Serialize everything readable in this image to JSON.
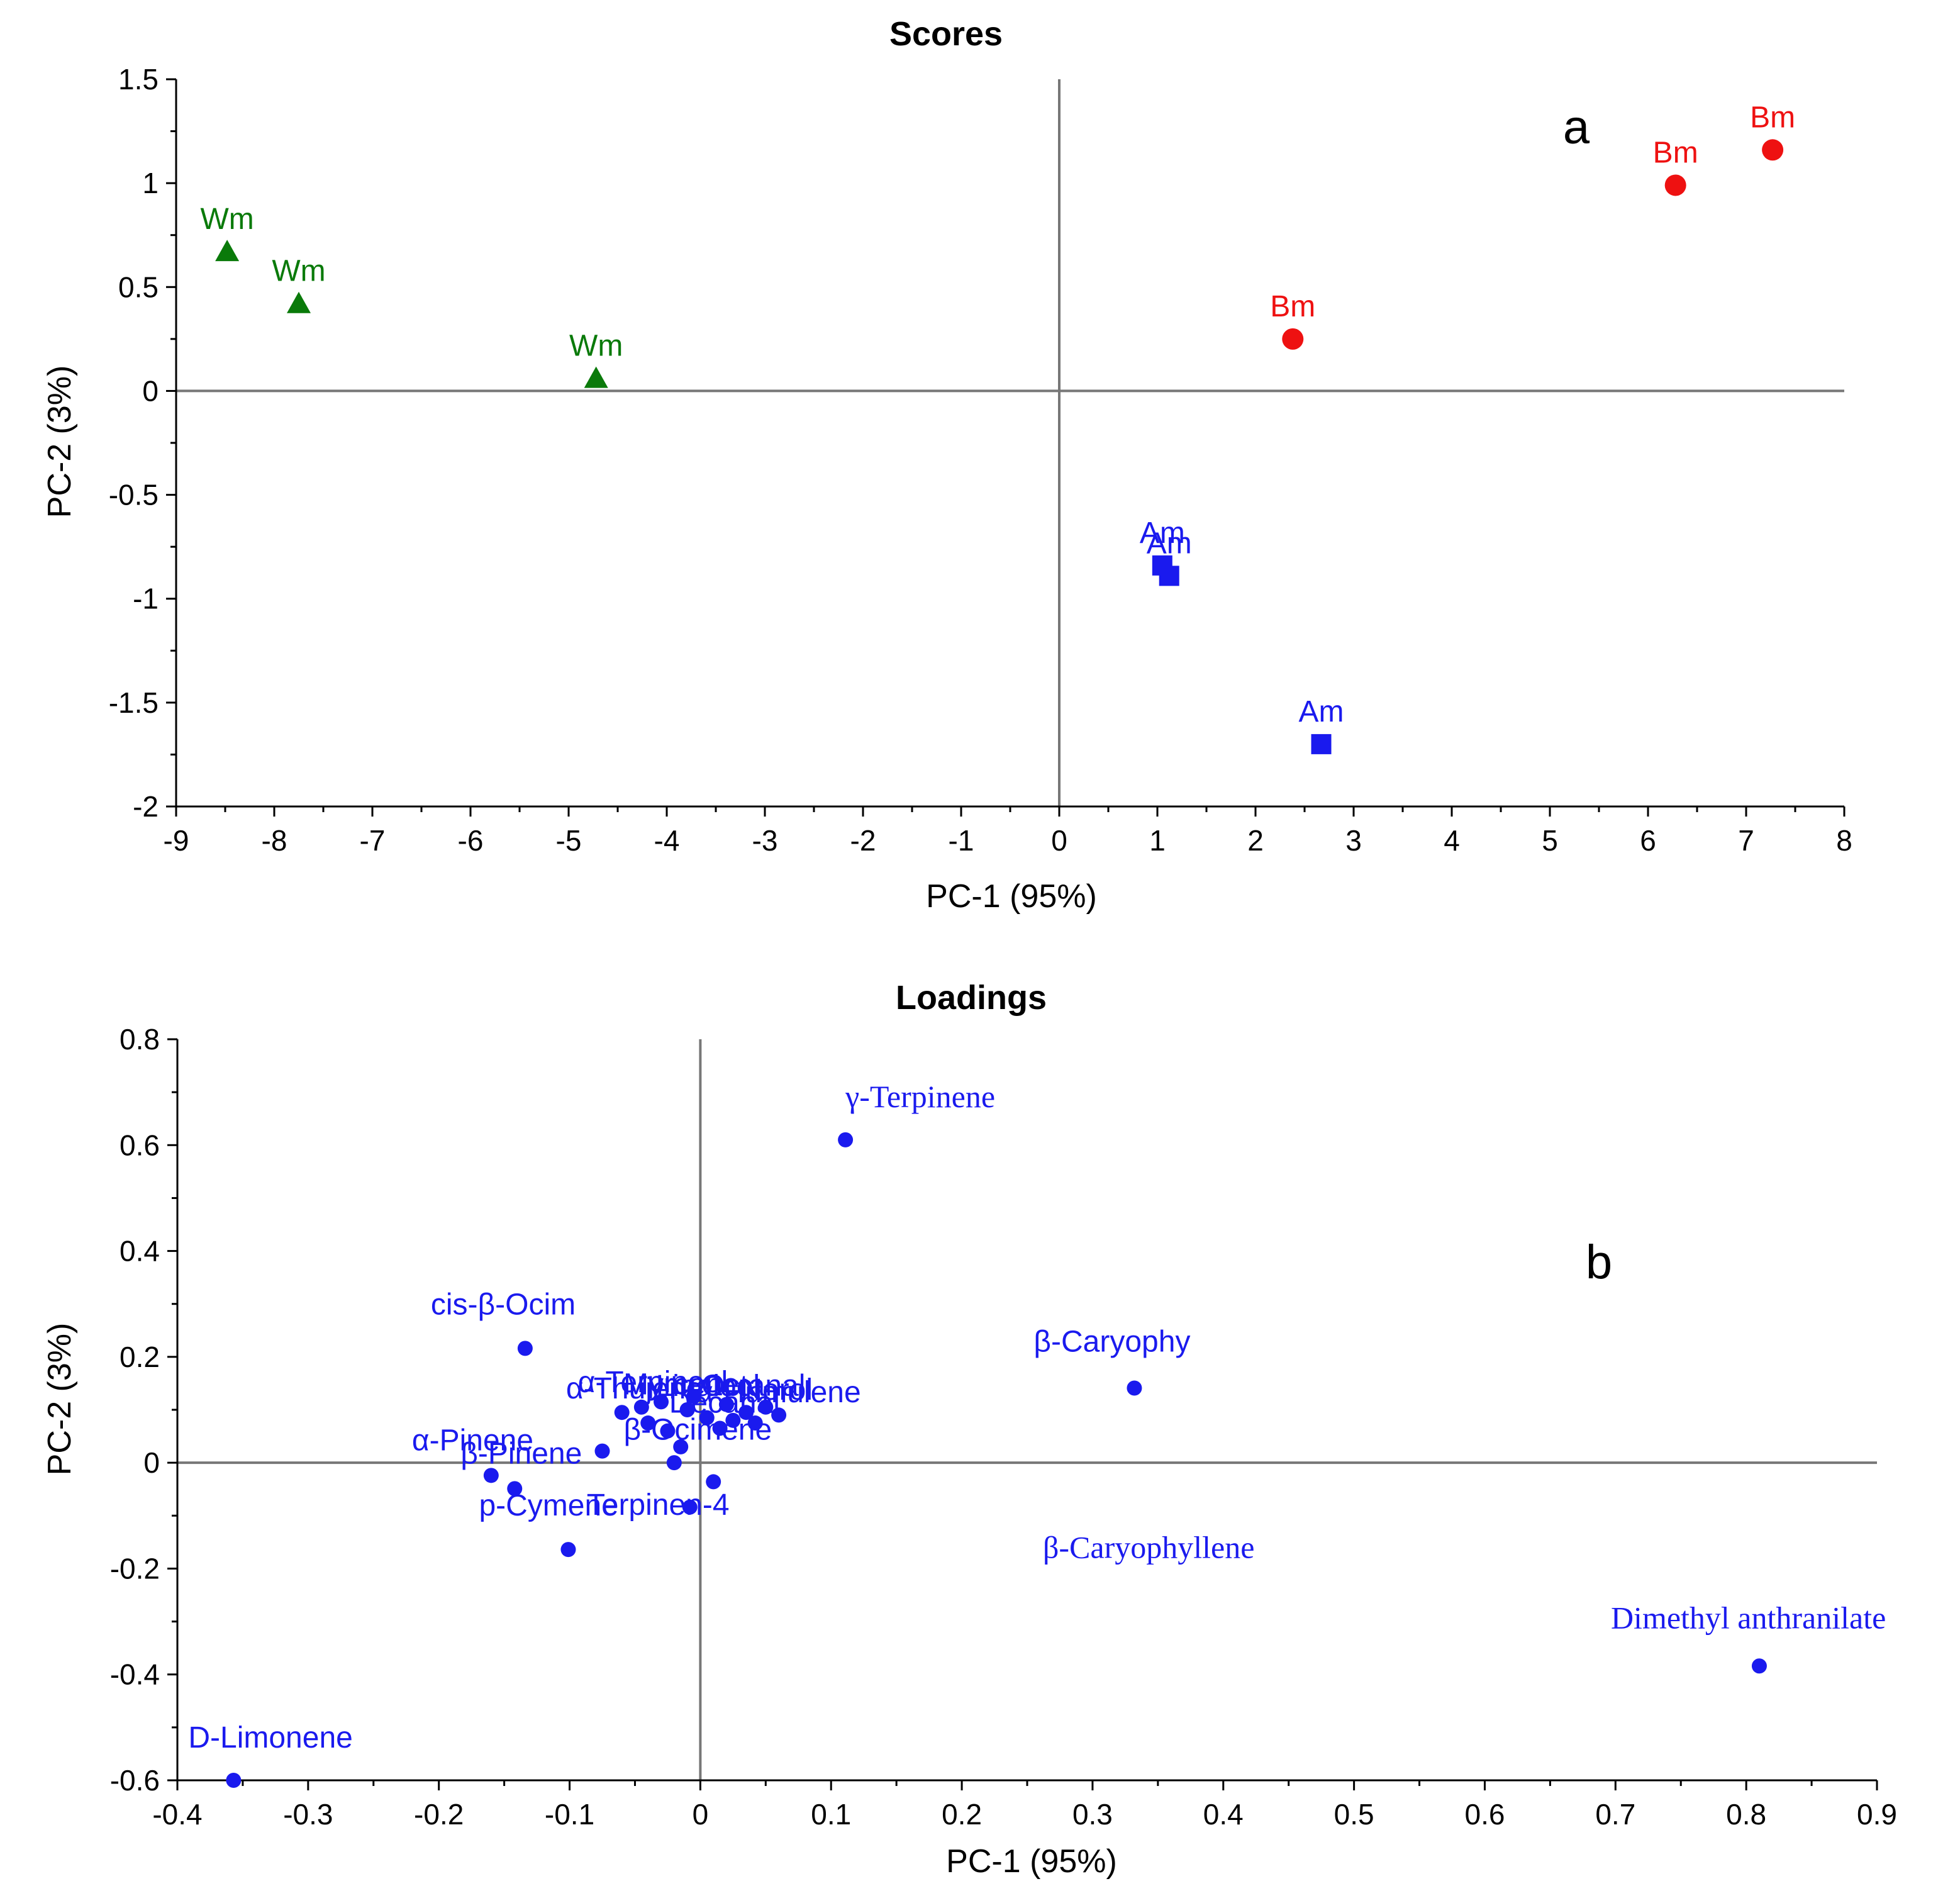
{
  "chart_data": [
    {
      "id": "scores",
      "type": "scatter",
      "title": "Scores",
      "xlabel": "PC-1 (95%)",
      "ylabel": "PC-2 (3%)",
      "xlim": [
        -9,
        8
      ],
      "ylim": [
        -2,
        1.5
      ],
      "xticks": [
        -9,
        -8,
        -7,
        -6,
        -5,
        -4,
        -3,
        -2,
        -1,
        0,
        1,
        2,
        3,
        4,
        5,
        6,
        7,
        8
      ],
      "yticks": [
        -2,
        -1.5,
        -1,
        -0.5,
        0,
        0.5,
        1,
        1.5
      ],
      "xtick_labels": [
        "-9",
        "-8",
        "-7",
        "-6",
        "-5",
        "-4",
        "-3",
        "-2",
        "-1",
        "0",
        "1",
        "2",
        "3",
        "4",
        "5",
        "6",
        "7",
        "8"
      ],
      "ytick_labels": [
        "-2",
        "-1.5",
        "-1",
        "-0.5",
        "0",
        "0.5",
        "1",
        "1.5"
      ],
      "panel_label": "a",
      "series": [
        {
          "name": "Wm",
          "marker": "triangle",
          "color": "#0a7a0a",
          "points": [
            {
              "x": -8.48,
              "y": 0.67,
              "label": "Wm"
            },
            {
              "x": -7.75,
              "y": 0.42,
              "label": "Wm"
            },
            {
              "x": -4.72,
              "y": 0.06,
              "label": "Wm"
            }
          ]
        },
        {
          "name": "Bm",
          "marker": "circle",
          "color": "#ee1111",
          "points": [
            {
              "x": 2.38,
              "y": 0.25,
              "label": "Bm"
            },
            {
              "x": 6.28,
              "y": 0.99,
              "label": "Bm"
            },
            {
              "x": 7.27,
              "y": 1.16,
              "label": "Bm"
            }
          ]
        },
        {
          "name": "Am",
          "marker": "square",
          "color": "#1a1aee",
          "points": [
            {
              "x": 1.05,
              "y": -0.84,
              "label": "Am"
            },
            {
              "x": 1.12,
              "y": -0.89,
              "label": "Am"
            },
            {
              "x": 2.67,
              "y": -1.7,
              "label": "Am"
            }
          ]
        }
      ]
    },
    {
      "id": "loadings",
      "type": "scatter",
      "title": "Loadings",
      "xlabel": "PC-1 (95%)",
      "ylabel": "PC-2 (3%)",
      "xlim": [
        -0.4,
        0.9
      ],
      "ylim": [
        -0.6,
        0.8
      ],
      "xticks": [
        -0.4,
        -0.3,
        -0.2,
        -0.1,
        0,
        0.1,
        0.2,
        0.3,
        0.4,
        0.5,
        0.6,
        0.7,
        0.8,
        0.9
      ],
      "yticks": [
        -0.6,
        -0.4,
        -0.2,
        0,
        0.2,
        0.4,
        0.6,
        0.8
      ],
      "xtick_labels": [
        "-0.4",
        "-0.3",
        "-0.2",
        "-0.1",
        "0",
        "0.1",
        "0.2",
        "0.3",
        "0.4",
        "0.5",
        "0.6",
        "0.7",
        "0.8",
        "0.9"
      ],
      "ytick_labels": [
        "-0.6",
        "-0.4",
        "-0.2",
        "0",
        "0.2",
        "0.4",
        "0.6",
        "0.8"
      ],
      "panel_label": "b",
      "color": "#1a1aee",
      "points": [
        {
          "x": 0.111,
          "y": 0.61,
          "label": "γ-Terpinene",
          "font": "serif"
        },
        {
          "x": 0.332,
          "y": 0.141,
          "label": "β-Caryophy"
        },
        {
          "x": 0.81,
          "y": -0.384,
          "label": "Dimethyl anthranilate",
          "font": "serif"
        },
        {
          "x": -0.357,
          "y": -0.6,
          "label": "D-Limonene"
        },
        {
          "x": -0.134,
          "y": 0.216,
          "label": "cis-β-Ocim"
        },
        {
          "x": -0.16,
          "y": -0.024,
          "label": "α-Pinene"
        },
        {
          "x": -0.142,
          "y": -0.049,
          "label": "β-Pinene"
        },
        {
          "x": -0.101,
          "y": -0.164,
          "label": "p-Cymene"
        },
        {
          "x": -0.008,
          "y": -0.084,
          "label": "Terpinen-4"
        },
        {
          "x": -0.075,
          "y": 0.022,
          "label": "β-Ocimene"
        },
        {
          "x": -0.02,
          "y": 0.0,
          "label": ""
        },
        {
          "x": 0.01,
          "y": -0.036,
          "label": ""
        },
        {
          "x": -0.015,
          "y": 0.03,
          "label": ""
        },
        {
          "x": -0.06,
          "y": 0.095,
          "label": "α-Terpineol"
        },
        {
          "x": -0.045,
          "y": 0.105,
          "label": "α-Thujene"
        },
        {
          "x": -0.03,
          "y": 0.115,
          "label": "Myrcene"
        },
        {
          "x": -0.01,
          "y": 0.1,
          "label": "Linalool"
        },
        {
          "x": 0.005,
          "y": 0.085,
          "label": "Decanal"
        },
        {
          "x": 0.02,
          "y": 0.11,
          "label": "Octanal"
        },
        {
          "x": 0.035,
          "y": 0.095,
          "label": "α-Humulene"
        },
        {
          "x": 0.05,
          "y": 0.105,
          "label": "Nerol"
        },
        {
          "x": 0.06,
          "y": 0.09,
          "label": ""
        },
        {
          "x": 0.042,
          "y": 0.075,
          "label": ""
        },
        {
          "x": -0.025,
          "y": 0.06,
          "label": ""
        },
        {
          "x": -0.04,
          "y": 0.075,
          "label": ""
        },
        {
          "x": 0.015,
          "y": 0.065,
          "label": ""
        },
        {
          "x": -0.005,
          "y": 0.125,
          "label": ""
        },
        {
          "x": 0.025,
          "y": 0.08,
          "label": ""
        }
      ],
      "annotations": [
        {
          "text": "β-Caryophyllene",
          "x": 0.262,
          "y": -0.18,
          "font": "serif"
        }
      ]
    }
  ]
}
